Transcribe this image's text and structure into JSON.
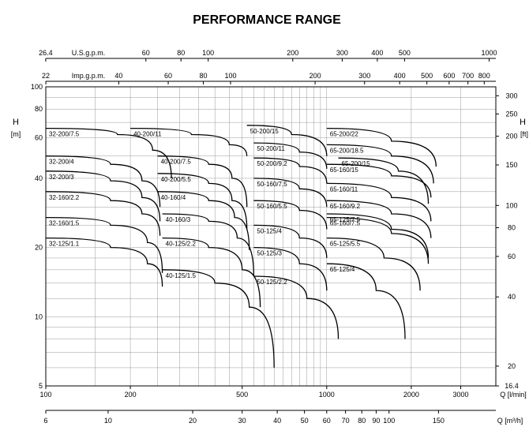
{
  "chart_data": {
    "type": "line",
    "title": "PERFORMANCE RANGE",
    "scale": "log-log",
    "grid": true,
    "xlabel": "Q [l/min]",
    "ylabel": "H [m]",
    "xlim": [
      100,
      4000
    ],
    "ylim": [
      5,
      100
    ],
    "x_ticks": [
      "100",
      "200",
      "500",
      "1000",
      "2000",
      "3000"
    ],
    "y_ticks": [
      "5",
      "10",
      "20",
      "40",
      "60",
      "80",
      "100"
    ],
    "secondary_axes": {
      "us_gpm": {
        "label": "U.S.g.p.m.",
        "ticks": [
          "26.4",
          "60",
          "80",
          "100",
          "200",
          "300",
          "400",
          "500",
          "1000"
        ]
      },
      "imp_gpm": {
        "label": "Imp.g.p.m.",
        "ticks": [
          "22",
          "40",
          "60",
          "80",
          "100",
          "200",
          "300",
          "400",
          "500",
          "600",
          "700",
          "800"
        ]
      },
      "m3h": {
        "label": "Q [m³/h]",
        "ticks": [
          "6",
          "10",
          "20",
          "30",
          "40",
          "50",
          "60",
          "70",
          "80",
          "90",
          "100",
          "150"
        ]
      },
      "ft": {
        "label": "H [ft]",
        "ticks": [
          "16.4",
          "20",
          "40",
          "60",
          "80",
          "100",
          "150",
          "200",
          "250",
          "300"
        ]
      }
    },
    "series": [
      {
        "name": "32-200/7.5",
        "x": [
          100,
          180,
          240,
          280
        ],
        "y": [
          66,
          62,
          53,
          40
        ]
      },
      {
        "name": "32-200/4",
        "x": [
          100,
          170,
          220,
          255
        ],
        "y": [
          50,
          46,
          39,
          30
        ]
      },
      {
        "name": "32-200/3",
        "x": [
          100,
          170,
          220,
          255
        ],
        "y": [
          43,
          39,
          33,
          26
        ]
      },
      {
        "name": "32-160/2.2",
        "x": [
          100,
          170,
          220,
          255
        ],
        "y": [
          35,
          32,
          28,
          22.5
        ]
      },
      {
        "name": "32-160/1.5",
        "x": [
          100,
          170,
          230,
          260
        ],
        "y": [
          27,
          25,
          21,
          15.5
        ]
      },
      {
        "name": "32-125/1.1",
        "x": [
          100,
          170,
          230,
          260
        ],
        "y": [
          22,
          20,
          17,
          13.5
        ]
      },
      {
        "name": "40-200/11",
        "x": [
          200,
          330,
          450,
          520
        ],
        "y": [
          66,
          62,
          56,
          50
        ]
      },
      {
        "name": "40-200/7.5",
        "x": [
          250,
          380,
          460,
          520
        ],
        "y": [
          50,
          46,
          40,
          30
        ]
      },
      {
        "name": "40-200/5.5",
        "x": [
          250,
          380,
          460,
          520
        ],
        "y": [
          42,
          38,
          32,
          24
        ]
      },
      {
        "name": "40-160/4",
        "x": [
          250,
          380,
          470,
          530
        ],
        "y": [
          35,
          32,
          27,
          19.5
        ]
      },
      {
        "name": "40-160/3",
        "x": [
          260,
          380,
          480,
          550
        ],
        "y": [
          28,
          26,
          22,
          15
        ]
      },
      {
        "name": "40-125/2.2",
        "x": [
          260,
          380,
          500,
          580
        ],
        "y": [
          22,
          20,
          16,
          11
        ]
      },
      {
        "name": "40-125/1.5",
        "x": [
          260,
          400,
          530,
          650
        ],
        "y": [
          16,
          14,
          11,
          6
        ]
      },
      {
        "name": "50-200/15",
        "x": [
          520,
          750,
          1000
        ],
        "y": [
          68,
          62,
          50
        ]
      },
      {
        "name": "50-200/11",
        "x": [
          550,
          800,
          1000
        ],
        "y": [
          57,
          52,
          44
        ]
      },
      {
        "name": "50-200/9.2",
        "x": [
          550,
          800,
          1000
        ],
        "y": [
          49,
          45,
          38
        ]
      },
      {
        "name": "50-160/7.5",
        "x": [
          550,
          800,
          1000
        ],
        "y": [
          40,
          36,
          30
        ]
      },
      {
        "name": "50-160/5.5",
        "x": [
          550,
          800,
          1000
        ],
        "y": [
          32,
          29,
          24
        ]
      },
      {
        "name": "50-125/4",
        "x": [
          550,
          800,
          1000
        ],
        "y": [
          25,
          22,
          18
        ]
      },
      {
        "name": "50-125/3",
        "x": [
          550,
          800,
          1000
        ],
        "y": [
          20,
          17,
          13
        ]
      },
      {
        "name": "50-125/2.2",
        "x": [
          550,
          850,
          1100
        ],
        "y": [
          15,
          12,
          8
        ]
      },
      {
        "name": "65-200/22",
        "x": [
          1000,
          1700,
          2450
        ],
        "y": [
          66,
          58,
          45
        ]
      },
      {
        "name": "65-200/18.5",
        "x": [
          1000,
          1700,
          2400
        ],
        "y": [
          56,
          50,
          38
        ]
      },
      {
        "name": "65-200/15",
        "x": [
          1100,
          1800,
          2300
        ],
        "y": [
          49,
          43,
          31
        ]
      },
      {
        "name": "65-160/15",
        "x": [
          1000,
          1700,
          2350
        ],
        "y": [
          46,
          41,
          33
        ]
      },
      {
        "name": "65-160/11",
        "x": [
          1000,
          1700,
          2350
        ],
        "y": [
          38,
          33,
          26
        ]
      },
      {
        "name": "65-160/9.2",
        "x": [
          1000,
          1700,
          2350
        ],
        "y": [
          32,
          28,
          22
        ]
      },
      {
        "name": "65-160/7.5",
        "x": [
          1000,
          1700,
          2300
        ],
        "y": [
          27,
          23,
          17
        ]
      },
      {
        "name": "65-125/7.5",
        "x": [
          1000,
          1700,
          2300
        ],
        "y": [
          28,
          24,
          18
        ]
      },
      {
        "name": "65-125/5.5",
        "x": [
          1000,
          1600,
          2150
        ],
        "y": [
          22,
          18,
          13
        ]
      },
      {
        "name": "65-125/4",
        "x": [
          1000,
          1500,
          1900
        ],
        "y": [
          17,
          13,
          8
        ]
      }
    ]
  }
}
